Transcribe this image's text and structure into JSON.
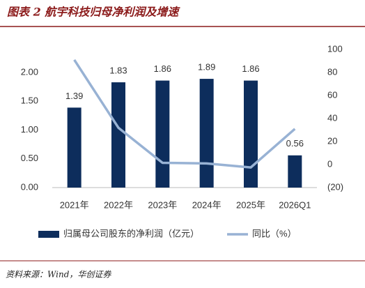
{
  "title": "图表 2  航宇科技归母净利润及增速",
  "source": "资料来源：Wind，华创证券",
  "chart_data": {
    "type": "bar-line",
    "categories": [
      "2021年",
      "2022年",
      "2023年",
      "2024年",
      "2025年",
      "2026Q1"
    ],
    "series": [
      {
        "name": "归属母公司股东的净利润（亿元）",
        "color": "#0d2d5c",
        "type": "bar",
        "values": [
          1.39,
          1.83,
          1.86,
          1.89,
          1.86,
          0.56
        ]
      },
      {
        "name": "同比（%）",
        "color": "#98b2d4",
        "type": "line",
        "axis": "y2",
        "values": [
          91,
          32,
          1.5,
          1,
          -2.5,
          31
        ]
      }
    ],
    "ylim": [
      0,
      2.4
    ],
    "yticks": [
      {
        "value": 0,
        "label": "0.00"
      },
      {
        "value": 0.5,
        "label": "0.50"
      },
      {
        "value": 1,
        "label": "1.00"
      },
      {
        "value": 1.5,
        "label": "1.50"
      },
      {
        "value": 2,
        "label": "2.00"
      }
    ],
    "y2lim": [
      -20,
      100
    ],
    "y2ticks": [
      {
        "value": -20,
        "label": "(20)"
      },
      0,
      20,
      40,
      60,
      80,
      100
    ],
    "negative_tick_color": "#d00000",
    "grid": false,
    "legend": "bottom"
  }
}
